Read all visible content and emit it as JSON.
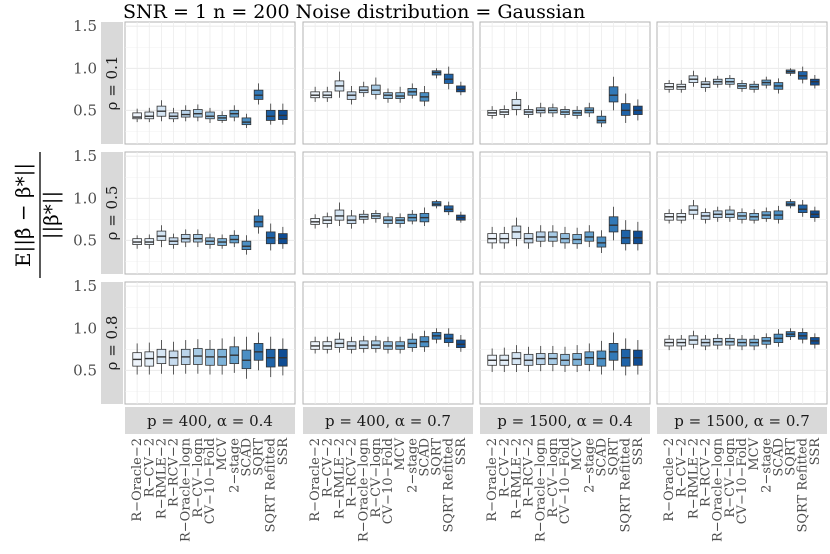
{
  "chart_data": {
    "type": "boxplot",
    "title": "SNR = 1 n = 200 Noise distribution = Gaussian",
    "ylabel_parts": {
      "numerator": "E||β̂ − β*||",
      "denominator": "||β*||"
    },
    "ylim": [
      0.1,
      1.55
    ],
    "yticks": [
      0.5,
      1.0,
      1.5
    ],
    "ytick_labels": [
      "0.5",
      "1.0",
      "1.5"
    ],
    "rows": [
      {
        "label": "ρ = 0.1"
      },
      {
        "label": "ρ = 0.5"
      },
      {
        "label": "ρ = 0.8"
      }
    ],
    "cols": [
      {
        "label": "p = 400, α = 0.4"
      },
      {
        "label": "p = 400, α = 0.7"
      },
      {
        "label": "p = 1500, α = 0.4"
      },
      {
        "label": "p = 1500, α = 0.7"
      }
    ],
    "methods": [
      "R−Oracle−2",
      "R−CV−2",
      "R−RMLE−2",
      "R−RCV−2",
      "R−Oracle−logn",
      "R−CV−logn",
      "CV−10−Fold",
      "MCV",
      "2−stage",
      "SCAD",
      "SQRT",
      "SQRT Refitted",
      "SSR"
    ],
    "colors": [
      "#eef4fb",
      "#e3eef8",
      "#d6e6f4",
      "#c8dcef",
      "#bad4eb",
      "#a8cbe5",
      "#94bfdf",
      "#7eb3d9",
      "#65a2cf",
      "#4b8fc4",
      "#3279b7",
      "#1f63a8",
      "#104d94"
    ],
    "panels": [
      [
        [
          [
            0.36,
            0.4,
            0.42,
            0.47,
            0.52
          ],
          [
            0.36,
            0.4,
            0.43,
            0.48,
            0.53
          ],
          [
            0.37,
            0.43,
            0.49,
            0.55,
            0.62
          ],
          [
            0.36,
            0.4,
            0.43,
            0.47,
            0.53
          ],
          [
            0.37,
            0.42,
            0.45,
            0.5,
            0.56
          ],
          [
            0.37,
            0.42,
            0.46,
            0.51,
            0.57
          ],
          [
            0.35,
            0.4,
            0.43,
            0.48,
            0.53
          ],
          [
            0.35,
            0.38,
            0.41,
            0.44,
            0.49
          ],
          [
            0.37,
            0.42,
            0.46,
            0.5,
            0.56
          ],
          [
            0.29,
            0.33,
            0.36,
            0.41,
            0.46
          ],
          [
            0.57,
            0.63,
            0.68,
            0.74,
            0.82
          ],
          [
            0.33,
            0.38,
            0.43,
            0.5,
            0.58
          ],
          [
            0.33,
            0.39,
            0.44,
            0.5,
            0.58
          ]
        ],
        [
          [
            0.6,
            0.65,
            0.68,
            0.72,
            0.78
          ],
          [
            0.6,
            0.65,
            0.68,
            0.72,
            0.78
          ],
          [
            0.65,
            0.73,
            0.79,
            0.85,
            0.96
          ],
          [
            0.57,
            0.63,
            0.68,
            0.72,
            0.79
          ],
          [
            0.66,
            0.71,
            0.74,
            0.78,
            0.84
          ],
          [
            0.63,
            0.69,
            0.74,
            0.8,
            0.89
          ],
          [
            0.59,
            0.64,
            0.68,
            0.71,
            0.76
          ],
          [
            0.59,
            0.64,
            0.67,
            0.71,
            0.78
          ],
          [
            0.64,
            0.68,
            0.72,
            0.76,
            0.82
          ],
          [
            0.55,
            0.61,
            0.66,
            0.71,
            0.79
          ],
          [
            0.88,
            0.92,
            0.95,
            0.97,
            1.0
          ],
          [
            0.75,
            0.82,
            0.87,
            0.93,
            1.02
          ],
          [
            0.68,
            0.72,
            0.75,
            0.79,
            0.84
          ]
        ],
        [
          [
            0.4,
            0.44,
            0.47,
            0.5,
            0.55
          ],
          [
            0.41,
            0.45,
            0.48,
            0.51,
            0.56
          ],
          [
            0.44,
            0.51,
            0.56,
            0.63,
            0.72
          ],
          [
            0.41,
            0.45,
            0.48,
            0.51,
            0.56
          ],
          [
            0.42,
            0.47,
            0.5,
            0.53,
            0.59
          ],
          [
            0.42,
            0.47,
            0.5,
            0.53,
            0.58
          ],
          [
            0.41,
            0.45,
            0.48,
            0.51,
            0.55
          ],
          [
            0.4,
            0.44,
            0.47,
            0.5,
            0.55
          ],
          [
            0.42,
            0.47,
            0.5,
            0.53,
            0.59
          ],
          [
            0.3,
            0.35,
            0.38,
            0.43,
            0.5
          ],
          [
            0.5,
            0.6,
            0.68,
            0.78,
            0.9
          ],
          [
            0.35,
            0.44,
            0.5,
            0.58,
            0.7
          ],
          [
            0.38,
            0.45,
            0.5,
            0.55,
            0.63
          ]
        ],
        [
          [
            0.71,
            0.75,
            0.78,
            0.82,
            0.86
          ],
          [
            0.71,
            0.75,
            0.78,
            0.81,
            0.86
          ],
          [
            0.78,
            0.83,
            0.87,
            0.91,
            0.97
          ],
          [
            0.72,
            0.77,
            0.81,
            0.84,
            0.89
          ],
          [
            0.77,
            0.81,
            0.84,
            0.87,
            0.91
          ],
          [
            0.77,
            0.81,
            0.84,
            0.88,
            0.92
          ],
          [
            0.72,
            0.76,
            0.79,
            0.82,
            0.86
          ],
          [
            0.71,
            0.75,
            0.78,
            0.81,
            0.85
          ],
          [
            0.76,
            0.8,
            0.83,
            0.86,
            0.9
          ],
          [
            0.7,
            0.75,
            0.79,
            0.83,
            0.88
          ],
          [
            0.91,
            0.94,
            0.96,
            0.98,
            1.0
          ],
          [
            0.82,
            0.87,
            0.91,
            0.96,
            1.02
          ],
          [
            0.76,
            0.8,
            0.84,
            0.87,
            0.92
          ]
        ]
      ],
      [
        [
          [
            0.4,
            0.45,
            0.48,
            0.52,
            0.56
          ],
          [
            0.4,
            0.45,
            0.48,
            0.52,
            0.57
          ],
          [
            0.42,
            0.5,
            0.55,
            0.61,
            0.68
          ],
          [
            0.4,
            0.45,
            0.49,
            0.53,
            0.58
          ],
          [
            0.42,
            0.48,
            0.52,
            0.57,
            0.63
          ],
          [
            0.42,
            0.48,
            0.52,
            0.57,
            0.63
          ],
          [
            0.4,
            0.45,
            0.49,
            0.53,
            0.58
          ],
          [
            0.4,
            0.44,
            0.48,
            0.52,
            0.57
          ],
          [
            0.42,
            0.47,
            0.51,
            0.56,
            0.62
          ],
          [
            0.33,
            0.39,
            0.43,
            0.49,
            0.56
          ],
          [
            0.58,
            0.66,
            0.72,
            0.79,
            0.87
          ],
          [
            0.38,
            0.46,
            0.53,
            0.6,
            0.7
          ],
          [
            0.4,
            0.46,
            0.52,
            0.58,
            0.66
          ]
        ],
        [
          [
            0.64,
            0.69,
            0.72,
            0.76,
            0.81
          ],
          [
            0.65,
            0.7,
            0.74,
            0.78,
            0.83
          ],
          [
            0.67,
            0.74,
            0.79,
            0.86,
            0.95
          ],
          [
            0.64,
            0.7,
            0.74,
            0.79,
            0.86
          ],
          [
            0.7,
            0.75,
            0.78,
            0.81,
            0.86
          ],
          [
            0.71,
            0.76,
            0.79,
            0.82,
            0.86
          ],
          [
            0.65,
            0.7,
            0.74,
            0.78,
            0.83
          ],
          [
            0.65,
            0.7,
            0.74,
            0.77,
            0.82
          ],
          [
            0.69,
            0.73,
            0.77,
            0.81,
            0.86
          ],
          [
            0.67,
            0.72,
            0.77,
            0.82,
            0.89
          ],
          [
            0.88,
            0.91,
            0.93,
            0.96,
            0.98
          ],
          [
            0.8,
            0.84,
            0.87,
            0.91,
            0.96
          ],
          [
            0.71,
            0.74,
            0.77,
            0.8,
            0.84
          ]
        ],
        [
          [
            0.4,
            0.47,
            0.52,
            0.58,
            0.66
          ],
          [
            0.4,
            0.47,
            0.52,
            0.58,
            0.66
          ],
          [
            0.43,
            0.52,
            0.6,
            0.67,
            0.77
          ],
          [
            0.4,
            0.47,
            0.52,
            0.58,
            0.66
          ],
          [
            0.42,
            0.49,
            0.54,
            0.6,
            0.68
          ],
          [
            0.42,
            0.49,
            0.54,
            0.6,
            0.68
          ],
          [
            0.4,
            0.47,
            0.52,
            0.58,
            0.66
          ],
          [
            0.4,
            0.46,
            0.51,
            0.57,
            0.65
          ],
          [
            0.42,
            0.49,
            0.54,
            0.6,
            0.68
          ],
          [
            0.35,
            0.42,
            0.47,
            0.54,
            0.62
          ],
          [
            0.5,
            0.6,
            0.68,
            0.78,
            0.9
          ],
          [
            0.38,
            0.46,
            0.53,
            0.62,
            0.74
          ],
          [
            0.38,
            0.46,
            0.53,
            0.61,
            0.72
          ]
        ],
        [
          [
            0.7,
            0.74,
            0.78,
            0.82,
            0.87
          ],
          [
            0.7,
            0.74,
            0.78,
            0.82,
            0.87
          ],
          [
            0.75,
            0.81,
            0.86,
            0.91,
            0.98
          ],
          [
            0.7,
            0.75,
            0.79,
            0.83,
            0.88
          ],
          [
            0.72,
            0.77,
            0.81,
            0.85,
            0.9
          ],
          [
            0.72,
            0.77,
            0.81,
            0.86,
            0.91
          ],
          [
            0.7,
            0.75,
            0.79,
            0.83,
            0.88
          ],
          [
            0.7,
            0.74,
            0.78,
            0.82,
            0.87
          ],
          [
            0.72,
            0.76,
            0.8,
            0.84,
            0.89
          ],
          [
            0.7,
            0.75,
            0.8,
            0.85,
            0.91
          ],
          [
            0.88,
            0.91,
            0.93,
            0.96,
            0.99
          ],
          [
            0.78,
            0.83,
            0.87,
            0.92,
            0.98
          ],
          [
            0.72,
            0.77,
            0.81,
            0.85,
            0.9
          ]
        ]
      ],
      [
        [
          [
            0.45,
            0.55,
            0.63,
            0.71,
            0.82
          ],
          [
            0.45,
            0.55,
            0.64,
            0.72,
            0.83
          ],
          [
            0.46,
            0.58,
            0.66,
            0.75,
            0.86
          ],
          [
            0.45,
            0.56,
            0.65,
            0.73,
            0.84
          ],
          [
            0.46,
            0.57,
            0.66,
            0.75,
            0.86
          ],
          [
            0.46,
            0.57,
            0.67,
            0.76,
            0.87
          ],
          [
            0.45,
            0.56,
            0.66,
            0.75,
            0.86
          ],
          [
            0.45,
            0.56,
            0.66,
            0.75,
            0.88
          ],
          [
            0.47,
            0.58,
            0.68,
            0.78,
            0.9
          ],
          [
            0.4,
            0.52,
            0.62,
            0.74,
            0.9
          ],
          [
            0.5,
            0.62,
            0.72,
            0.82,
            0.95
          ],
          [
            0.42,
            0.54,
            0.65,
            0.75,
            0.9
          ],
          [
            0.44,
            0.55,
            0.65,
            0.75,
            0.88
          ]
        ],
        [
          [
            0.7,
            0.75,
            0.79,
            0.84,
            0.9
          ],
          [
            0.7,
            0.75,
            0.79,
            0.84,
            0.9
          ],
          [
            0.71,
            0.77,
            0.82,
            0.87,
            0.95
          ],
          [
            0.7,
            0.75,
            0.79,
            0.84,
            0.9
          ],
          [
            0.71,
            0.76,
            0.8,
            0.85,
            0.91
          ],
          [
            0.71,
            0.76,
            0.8,
            0.85,
            0.91
          ],
          [
            0.7,
            0.75,
            0.79,
            0.84,
            0.9
          ],
          [
            0.7,
            0.75,
            0.79,
            0.84,
            0.9
          ],
          [
            0.72,
            0.77,
            0.82,
            0.87,
            0.94
          ],
          [
            0.72,
            0.78,
            0.84,
            0.9,
            0.97
          ],
          [
            0.82,
            0.87,
            0.91,
            0.95,
            1.0
          ],
          [
            0.78,
            0.83,
            0.88,
            0.93,
            1.0
          ],
          [
            0.72,
            0.77,
            0.81,
            0.86,
            0.92
          ]
        ],
        [
          [
            0.48,
            0.56,
            0.62,
            0.68,
            0.76
          ],
          [
            0.48,
            0.56,
            0.62,
            0.68,
            0.77
          ],
          [
            0.48,
            0.57,
            0.64,
            0.71,
            0.8
          ],
          [
            0.48,
            0.56,
            0.62,
            0.69,
            0.78
          ],
          [
            0.49,
            0.57,
            0.64,
            0.7,
            0.79
          ],
          [
            0.49,
            0.57,
            0.64,
            0.7,
            0.79
          ],
          [
            0.48,
            0.56,
            0.62,
            0.69,
            0.78
          ],
          [
            0.48,
            0.56,
            0.63,
            0.7,
            0.8
          ],
          [
            0.49,
            0.57,
            0.65,
            0.72,
            0.82
          ],
          [
            0.45,
            0.55,
            0.64,
            0.73,
            0.85
          ],
          [
            0.5,
            0.62,
            0.72,
            0.82,
            0.95
          ],
          [
            0.44,
            0.55,
            0.65,
            0.75,
            0.88
          ],
          [
            0.45,
            0.56,
            0.65,
            0.74,
            0.86
          ]
        ],
        [
          [
            0.74,
            0.79,
            0.83,
            0.87,
            0.92
          ],
          [
            0.74,
            0.79,
            0.83,
            0.87,
            0.92
          ],
          [
            0.76,
            0.81,
            0.86,
            0.91,
            0.97
          ],
          [
            0.74,
            0.79,
            0.83,
            0.87,
            0.92
          ],
          [
            0.75,
            0.8,
            0.84,
            0.88,
            0.93
          ],
          [
            0.75,
            0.8,
            0.84,
            0.88,
            0.93
          ],
          [
            0.74,
            0.79,
            0.83,
            0.87,
            0.92
          ],
          [
            0.74,
            0.79,
            0.83,
            0.87,
            0.92
          ],
          [
            0.76,
            0.81,
            0.85,
            0.89,
            0.94
          ],
          [
            0.78,
            0.83,
            0.88,
            0.93,
            0.99
          ],
          [
            0.86,
            0.9,
            0.93,
            0.96,
            1.0
          ],
          [
            0.82,
            0.87,
            0.91,
            0.95,
            1.0
          ],
          [
            0.76,
            0.81,
            0.85,
            0.89,
            0.94
          ]
        ]
      ]
    ]
  }
}
